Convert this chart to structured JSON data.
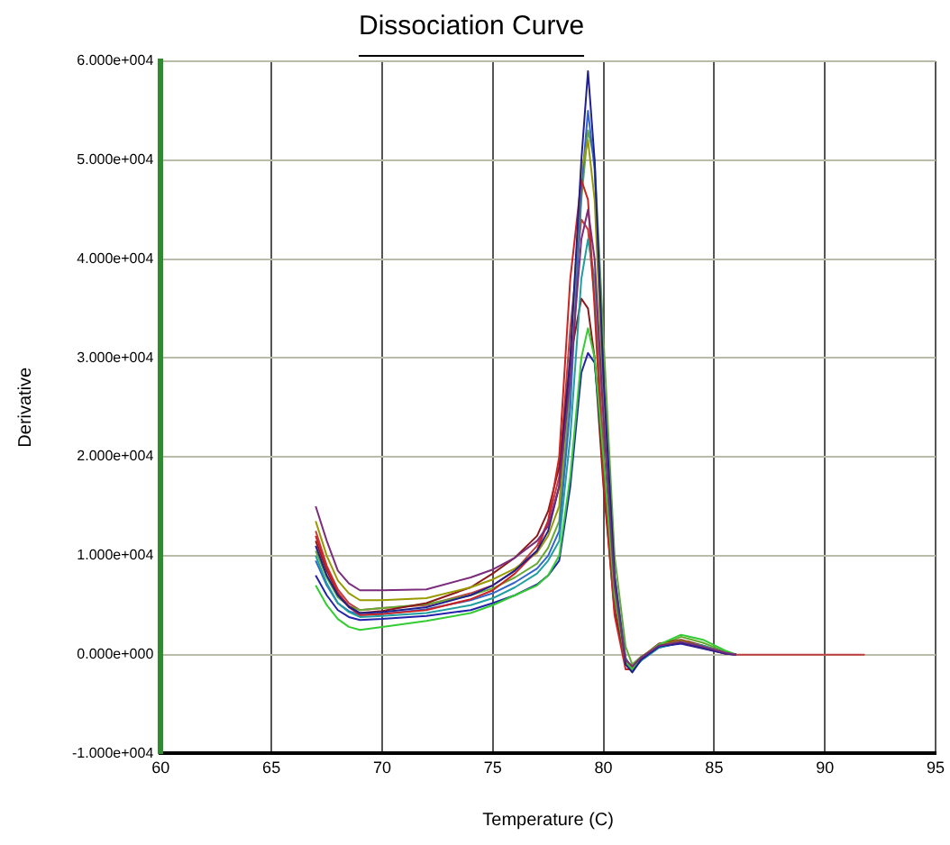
{
  "chart_data": {
    "type": "line",
    "title": "Dissociation Curve",
    "xlabel": "Temperature (C)",
    "ylabel": "Derivative",
    "x": [
      67,
      67.5,
      68,
      68.5,
      69,
      70,
      72,
      74,
      75,
      76,
      77,
      77.5,
      78,
      78.5,
      79,
      79.3,
      79.6,
      80,
      80.5,
      81,
      81.3,
      81.7,
      82.5,
      83.5,
      84.5,
      85.5,
      86
    ],
    "xlim": [
      60,
      95
    ],
    "xticks": [
      60,
      65,
      70,
      75,
      80,
      85,
      90,
      95
    ],
    "ylim": [
      -10000,
      60000
    ],
    "yticks": [
      {
        "value": -10000,
        "label": "-1.000e+004"
      },
      {
        "value": 0,
        "label": "0.000e+000"
      },
      {
        "value": 10000,
        "label": "1.000e+004"
      },
      {
        "value": 20000,
        "label": "2.000e+004"
      },
      {
        "value": 30000,
        "label": "3.000e+004"
      },
      {
        "value": 40000,
        "label": "4.000e+004"
      },
      {
        "value": 50000,
        "label": "5.000e+004"
      },
      {
        "value": 60000,
        "label": "6.000e+004"
      }
    ],
    "grid": true,
    "legend": false,
    "marker": "none",
    "line_style": "solid",
    "series": [
      {
        "color": "#7b2c7b",
        "values": [
          15000,
          11500,
          8500,
          7200,
          6500,
          6500,
          6600,
          7800,
          8600,
          9800,
          11500,
          13000,
          17000,
          28000,
          42000,
          45000,
          40000,
          24000,
          7000,
          -500,
          -1200,
          -300,
          900,
          1300,
          800,
          200,
          0
        ]
      },
      {
        "color": "#1f1f8f",
        "values": [
          11000,
          8000,
          6000,
          4800,
          4200,
          4300,
          4800,
          6000,
          7000,
          8500,
          10500,
          12500,
          17000,
          30000,
          50000,
          59000,
          50000,
          28000,
          8000,
          -1000,
          -1800,
          -500,
          800,
          1200,
          700,
          100,
          0
        ]
      },
      {
        "color": "#33cc33",
        "values": [
          7000,
          5000,
          3600,
          2800,
          2500,
          2800,
          3400,
          4200,
          5000,
          6000,
          7000,
          8000,
          10000,
          18000,
          30000,
          33000,
          30000,
          20000,
          6000,
          -800,
          -1500,
          -400,
          1000,
          2000,
          1500,
          400,
          0
        ]
      },
      {
        "color": "#cc2222",
        "values": [
          12000,
          8800,
          6300,
          4800,
          4000,
          4100,
          4500,
          5600,
          6500,
          8200,
          10500,
          13500,
          20000,
          38000,
          48000,
          46000,
          35000,
          18000,
          4000,
          -1500,
          -1500,
          -400,
          900,
          1200,
          700,
          100,
          0
        ]
      },
      {
        "color": "#999900",
        "values": [
          13500,
          10000,
          7500,
          6200,
          5500,
          5500,
          5700,
          6800,
          7600,
          8700,
          10300,
          12000,
          15000,
          30000,
          49000,
          52000,
          46000,
          26000,
          7000,
          -600,
          -1300,
          -300,
          1000,
          1400,
          800,
          200,
          0
        ]
      },
      {
        "color": "#1f9f9f",
        "values": [
          10000,
          7200,
          5200,
          4300,
          3800,
          3900,
          4200,
          5000,
          5700,
          6800,
          8200,
          9500,
          11500,
          22000,
          38000,
          42000,
          38000,
          24000,
          7500,
          -300,
          -1600,
          -600,
          700,
          1300,
          900,
          200,
          0
        ]
      },
      {
        "color": "#2222aa",
        "values": [
          8000,
          6000,
          4500,
          3800,
          3500,
          3600,
          3900,
          4500,
          5200,
          6000,
          7100,
          8000,
          9500,
          17000,
          28500,
          30500,
          29500,
          20000,
          6000,
          -500,
          -1700,
          -500,
          800,
          1100,
          600,
          100,
          0
        ]
      },
      {
        "color": "#8b1a1a",
        "values": [
          11500,
          8500,
          6200,
          4900,
          4200,
          4400,
          5200,
          6800,
          8200,
          9800,
          12000,
          14500,
          19000,
          30000,
          36000,
          35000,
          30000,
          17000,
          4500,
          -900,
          -1400,
          -300,
          1100,
          1500,
          900,
          200,
          0
        ]
      },
      {
        "color": "#3366cc",
        "values": [
          9500,
          7000,
          5200,
          4400,
          4000,
          4100,
          4600,
          5500,
          6200,
          7300,
          8700,
          10000,
          12500,
          25000,
          47000,
          55000,
          49000,
          28000,
          8000,
          -400,
          -1500,
          -600,
          700,
          1200,
          800,
          200,
          0
        ]
      },
      {
        "color": "#66aa33",
        "values": [
          10500,
          7800,
          5800,
          4900,
          4500,
          4700,
          5100,
          6000,
          6700,
          7800,
          9200,
          10800,
          13500,
          27000,
          46000,
          53000,
          50000,
          32000,
          10000,
          800,
          -1000,
          -200,
          900,
          1800,
          1200,
          300,
          0
        ]
      },
      {
        "color": "#c04040",
        "x": [
          67,
          67.5,
          68,
          68.5,
          69,
          70,
          72,
          74,
          75,
          76,
          77,
          77.5,
          78,
          78.5,
          79,
          79.3,
          79.6,
          80,
          80.5,
          81,
          81.3,
          81.7,
          82.5,
          83.5,
          84.5,
          85.5,
          86,
          91.8
        ],
        "values": [
          12500,
          9000,
          6600,
          5200,
          4500,
          4700,
          5000,
          6200,
          7000,
          8500,
          11000,
          13500,
          18000,
          33000,
          44000,
          43000,
          36000,
          21000,
          5500,
          -800,
          -1400,
          -400,
          800,
          1300,
          800,
          200,
          0,
          0
        ]
      }
    ]
  }
}
